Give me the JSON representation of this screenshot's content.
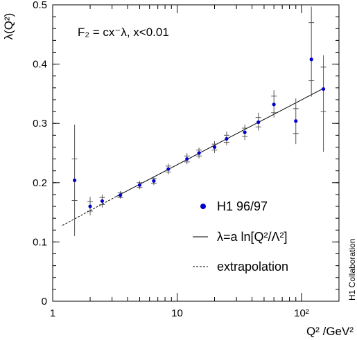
{
  "chart_data": {
    "type": "scatter",
    "xscale": "log",
    "xlim": [
      1,
      200
    ],
    "ylim": [
      0,
      0.5
    ],
    "xticks": [
      1,
      10,
      100
    ],
    "xtick_labels": [
      "1",
      "10",
      "10²"
    ],
    "yticks": [
      0,
      0.1,
      0.2,
      0.3,
      0.4,
      0.5
    ],
    "ytick_labels": [
      "0",
      "0.1",
      "0.2",
      "0.3",
      "0.4",
      "0.5"
    ],
    "xlabel": "Q² /GeV²",
    "ylabel": "λ(Q²)",
    "annotation": "F₂ = cx⁻λ,  x<0.01",
    "side_label": "H1 Collaboration",
    "grid": false,
    "legend_position": "center-right",
    "colors": {
      "points": "#0000cc",
      "errorbars": "#555555",
      "lines": "#000000"
    },
    "series": [
      {
        "name": "H1 96/97",
        "type": "scatter",
        "points": [
          {
            "x": 1.5,
            "y": 0.204,
            "stat": [
              0.17,
              0.24
            ],
            "tot": [
              0.11,
              0.298
            ]
          },
          {
            "x": 2.0,
            "y": 0.16,
            "stat": [
              0.152,
              0.168
            ],
            "tot": [
              0.145,
              0.176
            ]
          },
          {
            "x": 2.5,
            "y": 0.169,
            "stat": [
              0.163,
              0.175
            ],
            "tot": [
              0.158,
              0.18
            ]
          },
          {
            "x": 3.5,
            "y": 0.179,
            "stat": [
              0.175,
              0.183
            ],
            "tot": [
              0.173,
              0.186
            ]
          },
          {
            "x": 5.0,
            "y": 0.196,
            "stat": [
              0.192,
              0.2
            ],
            "tot": [
              0.189,
              0.203
            ]
          },
          {
            "x": 6.5,
            "y": 0.203,
            "stat": [
              0.199,
              0.207
            ],
            "tot": [
              0.196,
              0.211
            ]
          },
          {
            "x": 8.5,
            "y": 0.223,
            "stat": [
              0.218,
              0.228
            ],
            "tot": [
              0.214,
              0.232
            ]
          },
          {
            "x": 12.0,
            "y": 0.24,
            "stat": [
              0.235,
              0.245
            ],
            "tot": [
              0.231,
              0.25
            ]
          },
          {
            "x": 15.0,
            "y": 0.25,
            "stat": [
              0.245,
              0.255
            ],
            "tot": [
              0.241,
              0.259
            ]
          },
          {
            "x": 20.0,
            "y": 0.26,
            "stat": [
              0.255,
              0.265
            ],
            "tot": [
              0.25,
              0.27
            ]
          },
          {
            "x": 25.0,
            "y": 0.274,
            "stat": [
              0.268,
              0.28
            ],
            "tot": [
              0.263,
              0.286
            ]
          },
          {
            "x": 35.0,
            "y": 0.285,
            "stat": [
              0.278,
              0.292
            ],
            "tot": [
              0.272,
              0.298
            ]
          },
          {
            "x": 45.0,
            "y": 0.302,
            "stat": [
              0.294,
              0.31
            ],
            "tot": [
              0.288,
              0.318
            ]
          },
          {
            "x": 60.0,
            "y": 0.332,
            "stat": [
              0.318,
              0.346
            ],
            "tot": [
              0.31,
              0.356
            ]
          },
          {
            "x": 90.0,
            "y": 0.304,
            "stat": [
              0.283,
              0.325
            ],
            "tot": [
              0.265,
              0.342
            ]
          },
          {
            "x": 120.0,
            "y": 0.408,
            "stat": [
              0.372,
              0.47
            ],
            "tot": [
              0.345,
              0.497
            ]
          },
          {
            "x": 150.0,
            "y": 0.358,
            "stat": [
              0.32,
              0.395
            ],
            "tot": [
              0.252,
              0.415
            ]
          }
        ]
      },
      {
        "name": "λ=a ln[Q²/Λ²]",
        "type": "line",
        "style": "solid",
        "x": [
          3.2,
          150
        ],
        "y": [
          0.176,
          0.359
        ]
      },
      {
        "name": "extrapolation",
        "type": "line",
        "style": "dashed",
        "x": [
          1.2,
          3.2
        ],
        "y": [
          0.128,
          0.176
        ]
      }
    ]
  }
}
